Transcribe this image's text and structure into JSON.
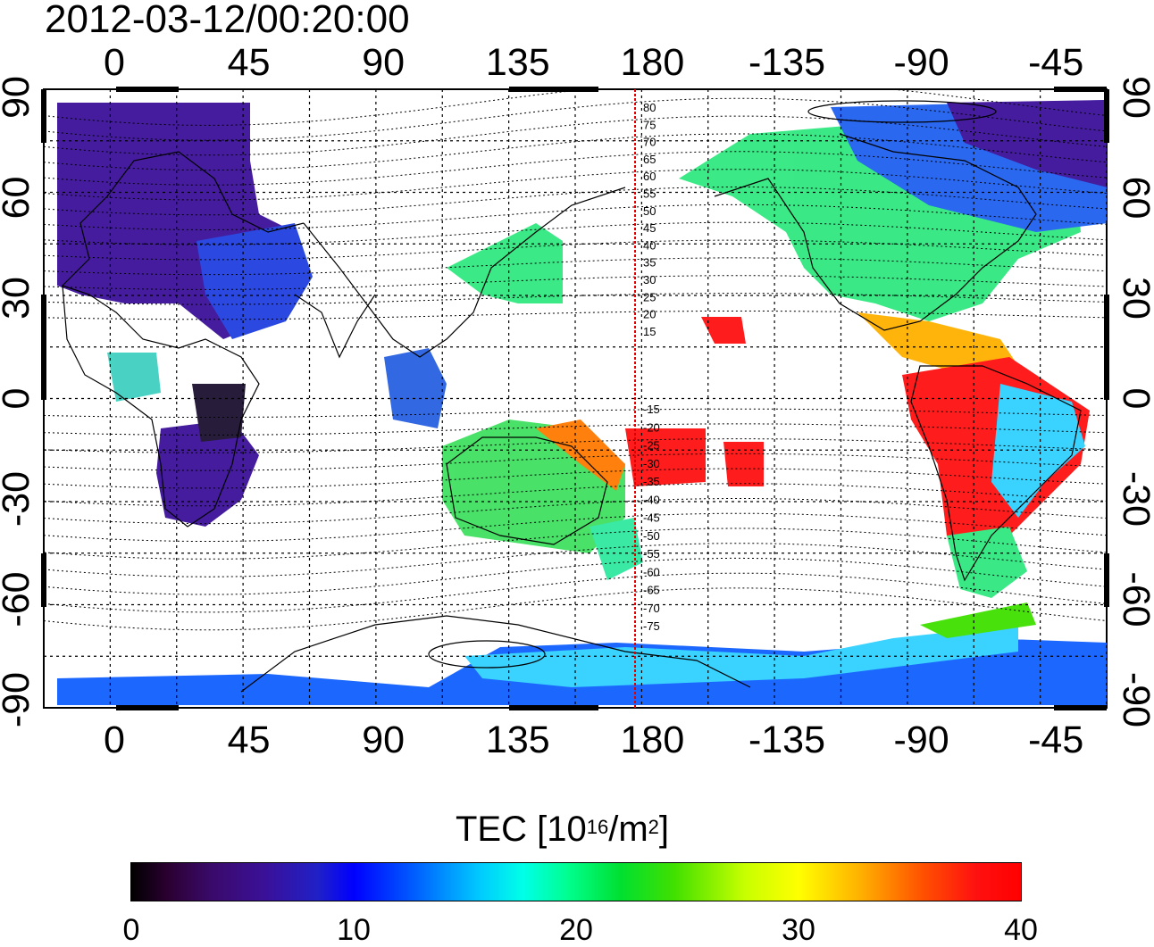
{
  "timestamp": "2012-03-12/00:20:00",
  "map": {
    "lon_ticks_top": [
      "0",
      "45",
      "90",
      "135",
      "180",
      "-135",
      "-90",
      "-45"
    ],
    "lon_ticks_bottom": [
      "0",
      "45",
      "90",
      "135",
      "180",
      "-135",
      "-90",
      "-45"
    ],
    "lat_ticks_left": [
      "90",
      "60",
      "30",
      "0",
      "-30",
      "-60",
      "-90"
    ],
    "lat_ticks_right": [
      "90",
      "60",
      "30",
      "0",
      "-30",
      "-60",
      "-90"
    ],
    "meridian_line_lon": 175,
    "magnetic_latitude_labels": [
      "80",
      "75",
      "70",
      "65",
      "60",
      "55",
      "50",
      "45",
      "40",
      "35",
      "30",
      "25",
      "20",
      "15",
      "-15",
      "-20",
      "-25",
      "-30",
      "-35",
      "-40",
      "-45",
      "-50",
      "-55",
      "-60",
      "-65",
      "-70",
      "-75"
    ]
  },
  "colorbar": {
    "title_prefix": "TEC  [10",
    "title_exponent": "16",
    "title_mid": "/m",
    "title_exponent2": "2",
    "title_suffix": "]",
    "min": 0,
    "max": 40,
    "tick_labels": [
      "0",
      "10",
      "20",
      "30",
      "40"
    ],
    "colors": [
      "#000000",
      "#3a1098",
      "#0000ff",
      "#00c8ff",
      "#00ff90",
      "#40e000",
      "#ffff00",
      "#ff5000",
      "#ff0000"
    ]
  },
  "tec_regions": [
    {
      "name": "northern-europe-asia",
      "value": 7,
      "color": "#3a1098"
    },
    {
      "name": "north-america",
      "value": 21,
      "color": "#20e880"
    },
    {
      "name": "south-america-equatorial",
      "value": 39,
      "color": "#ff1010"
    },
    {
      "name": "australia",
      "value": 21,
      "color": "#40e060"
    },
    {
      "name": "antarctica",
      "value": 12,
      "color": "#1060ff"
    },
    {
      "name": "pacific-south",
      "value": 39,
      "color": "#ff1010"
    },
    {
      "name": "africa-south",
      "value": 6,
      "color": "#3a1098"
    }
  ]
}
